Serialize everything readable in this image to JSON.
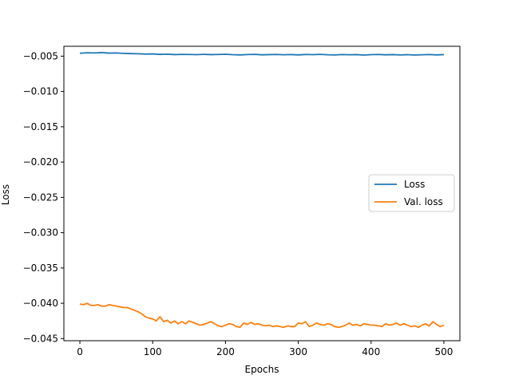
{
  "chart_data": {
    "type": "line",
    "title": "",
    "xlabel": "Epochs",
    "ylabel": "Loss",
    "xlim": [
      -22,
      522
    ],
    "ylim": [
      -0.0453,
      -0.0036
    ],
    "x_ticks": [
      {
        "value": 0,
        "label": "0"
      },
      {
        "value": 100,
        "label": "100"
      },
      {
        "value": 200,
        "label": "200"
      },
      {
        "value": 300,
        "label": "300"
      },
      {
        "value": 400,
        "label": "400"
      },
      {
        "value": 500,
        "label": "500"
      }
    ],
    "y_ticks": [
      {
        "value": -0.005,
        "label": "−0.005"
      },
      {
        "value": -0.01,
        "label": "−0.010"
      },
      {
        "value": -0.015,
        "label": "−0.015"
      },
      {
        "value": -0.02,
        "label": "−0.020"
      },
      {
        "value": -0.025,
        "label": "−0.025"
      },
      {
        "value": -0.03,
        "label": "−0.030"
      },
      {
        "value": -0.035,
        "label": "−0.035"
      },
      {
        "value": -0.04,
        "label": "−0.040"
      },
      {
        "value": -0.045,
        "label": "−0.045"
      }
    ],
    "grid": false,
    "legend": {
      "placement": "center-right"
    },
    "series": [
      {
        "name": "Loss",
        "color": "#1f77b4",
        "x": [
          0,
          10,
          20,
          30,
          40,
          50,
          60,
          70,
          80,
          90,
          100,
          110,
          120,
          130,
          140,
          150,
          160,
          170,
          180,
          190,
          200,
          210,
          220,
          230,
          240,
          250,
          260,
          270,
          280,
          290,
          300,
          310,
          320,
          330,
          340,
          350,
          360,
          370,
          380,
          390,
          400,
          410,
          420,
          430,
          440,
          450,
          460,
          470,
          480,
          490,
          500
        ],
        "y": [
          -0.00459,
          -0.00452,
          -0.00455,
          -0.0045,
          -0.00457,
          -0.00455,
          -0.0046,
          -0.00464,
          -0.00466,
          -0.00471,
          -0.00468,
          -0.00475,
          -0.00472,
          -0.00478,
          -0.00474,
          -0.00476,
          -0.00479,
          -0.00474,
          -0.00478,
          -0.00476,
          -0.00473,
          -0.00479,
          -0.00482,
          -0.00477,
          -0.00474,
          -0.00481,
          -0.00478,
          -0.00476,
          -0.0048,
          -0.00477,
          -0.00482,
          -0.00476,
          -0.00479,
          -0.00474,
          -0.0048,
          -0.00483,
          -0.00477,
          -0.0048,
          -0.00478,
          -0.00484,
          -0.00479,
          -0.00476,
          -0.00481,
          -0.00478,
          -0.00483,
          -0.00479,
          -0.00484,
          -0.0048,
          -0.00477,
          -0.00482,
          -0.00478
        ]
      },
      {
        "name": "Val. loss",
        "color": "#ff7f0e",
        "x": [
          0,
          5,
          10,
          15,
          20,
          25,
          30,
          35,
          40,
          45,
          50,
          55,
          60,
          65,
          70,
          75,
          80,
          85,
          90,
          95,
          100,
          105,
          110,
          115,
          120,
          125,
          130,
          135,
          140,
          145,
          150,
          155,
          160,
          165,
          170,
          175,
          180,
          185,
          190,
          195,
          200,
          205,
          210,
          215,
          220,
          225,
          230,
          235,
          240,
          245,
          250,
          255,
          260,
          265,
          270,
          275,
          280,
          285,
          290,
          295,
          300,
          305,
          310,
          315,
          320,
          325,
          330,
          335,
          340,
          345,
          350,
          355,
          360,
          365,
          370,
          375,
          380,
          385,
          390,
          395,
          400,
          405,
          410,
          415,
          420,
          425,
          430,
          435,
          440,
          445,
          450,
          455,
          460,
          465,
          470,
          475,
          480,
          485,
          490,
          495,
          500
        ],
        "y": [
          -0.0401,
          -0.0402,
          -0.04,
          -0.0403,
          -0.0403,
          -0.0402,
          -0.0404,
          -0.0404,
          -0.0402,
          -0.0403,
          -0.0404,
          -0.0405,
          -0.0406,
          -0.0406,
          -0.0408,
          -0.041,
          -0.0412,
          -0.0415,
          -0.0419,
          -0.0421,
          -0.0422,
          -0.0425,
          -0.0419,
          -0.0426,
          -0.0424,
          -0.0428,
          -0.0425,
          -0.0429,
          -0.0426,
          -0.0429,
          -0.0425,
          -0.0427,
          -0.0429,
          -0.0431,
          -0.043,
          -0.0428,
          -0.0426,
          -0.0429,
          -0.0432,
          -0.0433,
          -0.0431,
          -0.0429,
          -0.043,
          -0.0433,
          -0.0434,
          -0.0428,
          -0.043,
          -0.0427,
          -0.043,
          -0.0429,
          -0.0431,
          -0.0432,
          -0.0431,
          -0.0433,
          -0.0432,
          -0.0433,
          -0.0434,
          -0.0432,
          -0.0433,
          -0.0433,
          -0.0428,
          -0.0429,
          -0.0426,
          -0.0433,
          -0.0431,
          -0.0428,
          -0.043,
          -0.0431,
          -0.0429,
          -0.043,
          -0.0433,
          -0.0434,
          -0.0433,
          -0.0431,
          -0.0428,
          -0.0431,
          -0.043,
          -0.0432,
          -0.0429,
          -0.043,
          -0.0431,
          -0.0431,
          -0.0432,
          -0.0433,
          -0.0429,
          -0.0431,
          -0.043,
          -0.0428,
          -0.0431,
          -0.0429,
          -0.0431,
          -0.0433,
          -0.0432,
          -0.0434,
          -0.0431,
          -0.0429,
          -0.0432,
          -0.0426,
          -0.043,
          -0.0433,
          -0.0431
        ]
      }
    ]
  }
}
